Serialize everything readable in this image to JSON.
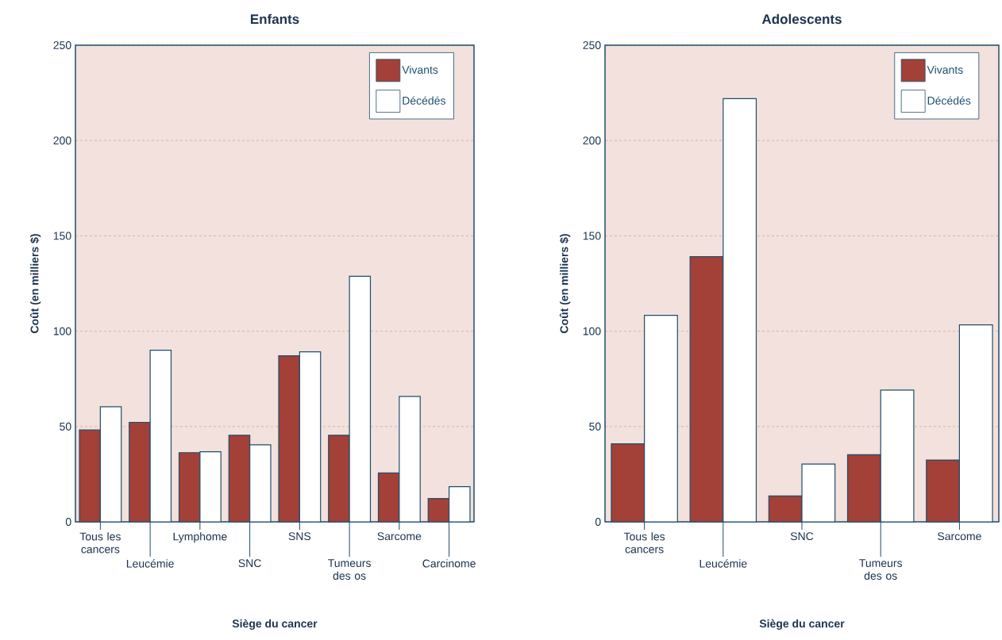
{
  "chart_data": [
    {
      "type": "bar",
      "title": "Enfants",
      "xlabel": "Siège du cancer",
      "ylabel": "Coût (en milliers $)",
      "categories": [
        "Tous les cancers",
        "Leucémie",
        "Lymphome",
        "SNC",
        "SNS",
        "Tumeurs des os",
        "Sarcome",
        "Carcinome"
      ],
      "series": [
        {
          "name": "Vivants",
          "color": "#a34037",
          "values": [
            48.2,
            52.2,
            36.3,
            45.4,
            87.1,
            45.4,
            25.6,
            12.2
          ]
        },
        {
          "name": "Décédés",
          "color": "#ffffff",
          "values": [
            60.4,
            90.0,
            36.8,
            40.4,
            89.2,
            128.8,
            65.8,
            18.5
          ]
        }
      ],
      "ylim": [
        0,
        250
      ],
      "yticks": [
        0,
        50,
        100,
        150,
        200,
        250
      ],
      "grid": "y",
      "legend": "top right"
    },
    {
      "type": "bar",
      "title": "Adolescents",
      "xlabel": "Siège du cancer",
      "ylabel": "Coût (en milliers $)",
      "categories": [
        "Tous les cancers",
        "Leucémie",
        "SNC",
        "Tumeurs des os",
        "Sarcome"
      ],
      "series": [
        {
          "name": "Vivants",
          "color": "#a34037",
          "values": [
            40.9,
            139.1,
            13.6,
            35.2,
            32.4
          ]
        },
        {
          "name": "Décédés",
          "color": "#ffffff",
          "values": [
            108.3,
            222.0,
            30.3,
            69.1,
            103.3
          ]
        }
      ],
      "ylim": [
        0,
        250
      ],
      "yticks": [
        0,
        50,
        100,
        150,
        200,
        250
      ],
      "grid": "y",
      "legend": "top right"
    }
  ]
}
